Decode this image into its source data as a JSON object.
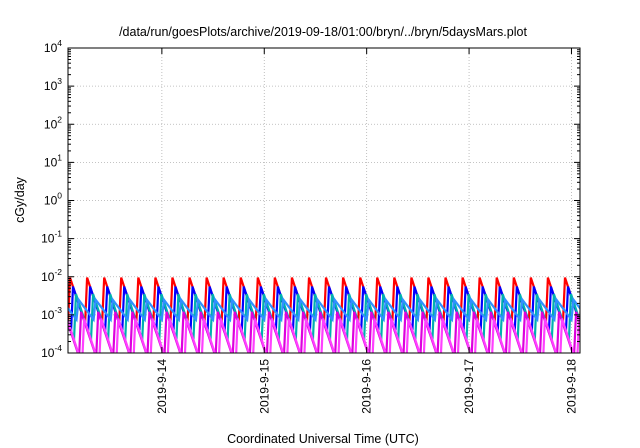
{
  "chart_data": {
    "type": "line",
    "title": "/data/run/goesPlots/archive/2019-09-18/01:00/bryn/../bryn/5daysMars.plot",
    "xlabel": "Coordinated Universal Time (UTC)",
    "ylabel": "cGy/day",
    "y_scale": "log",
    "ylim": [
      0.0001,
      10000
    ],
    "xlim": [
      "2019-09-13 02:00",
      "2019-09-18 02:00"
    ],
    "grid": true,
    "legend": "none",
    "y_ticks": [
      {
        "base": "10",
        "exp": "4"
      },
      {
        "base": "10",
        "exp": "3"
      },
      {
        "base": "10",
        "exp": "2"
      },
      {
        "base": "10",
        "exp": "1"
      },
      {
        "base": "10",
        "exp": "0"
      },
      {
        "base": "10",
        "exp": "-1"
      },
      {
        "base": "10",
        "exp": "-2"
      },
      {
        "base": "10",
        "exp": "-3"
      },
      {
        "base": "10",
        "exp": "-4"
      }
    ],
    "x_ticks": [
      "2019-9-14",
      "2019-9-15",
      "2019-9-16",
      "2019-9-17",
      "2019-9-18"
    ],
    "sawtooth_period_hours": 4,
    "series": [
      {
        "color": "#ff0000",
        "peak": 0.0095,
        "trough": 0.0006,
        "phase_hours": 0.0
      },
      {
        "color": "#0000ff",
        "peak": 0.0055,
        "trough": 0.00035,
        "phase_hours": 0.7
      },
      {
        "color": "#00b0b0",
        "peak": 0.0035,
        "trough": 0.00022,
        "phase_hours": 1.4
      },
      {
        "color": "#3090ff",
        "peak": 0.0025,
        "trough": 0.00075,
        "phase_hours": 2.0
      },
      {
        "color": "#dd00dd",
        "peak": 0.0012,
        "trough": 8e-05,
        "phase_hours": 2.6
      },
      {
        "color": "#ff40ff",
        "peak": 0.0008,
        "trough": 5e-05,
        "phase_hours": 3.3
      }
    ]
  }
}
